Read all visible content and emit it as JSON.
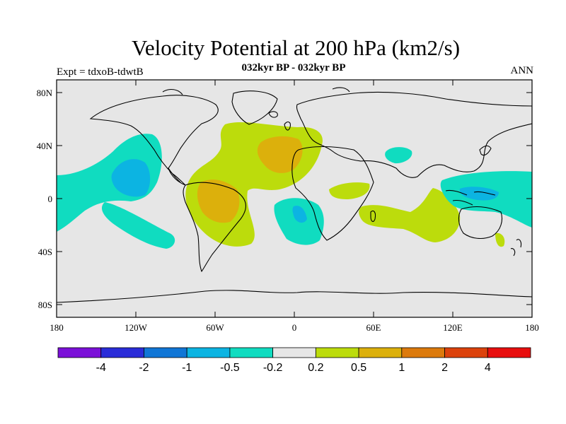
{
  "title": "Velocity Potential at 200 hPa (km2/s)",
  "subtitle": "032kyr BP - 032kyr BP",
  "experiment_label": "Expt = tdxoB-tdwtB",
  "season_label": "ANN",
  "map": {
    "projection": "cylindrical equidistant",
    "background_color": "#e6e6e6",
    "lat_labels": [
      "80N",
      "40N",
      "0",
      "40S",
      "80S"
    ],
    "lon_labels": [
      "180",
      "120W",
      "60W",
      "0",
      "60E",
      "120E",
      "180"
    ]
  },
  "colorbar": {
    "colors": [
      "#7b10d8",
      "#2a2cd8",
      "#1076d6",
      "#0cb4e2",
      "#10dcc0",
      "#e6e6e6",
      "#bcdc0c",
      "#dcb00c",
      "#dc7a0c",
      "#dc420c",
      "#e80e0e"
    ],
    "labels": [
      "-4",
      "-2",
      "-1",
      "-0.5",
      "-0.2",
      "0.2",
      "0.5",
      "1",
      "2",
      "4"
    ]
  }
}
